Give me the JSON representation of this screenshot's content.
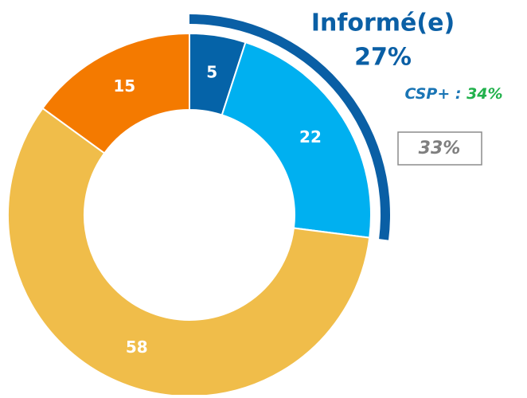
{
  "chart_data": {
    "type": "donut",
    "categories": [
      null,
      null,
      null,
      null
    ],
    "values": [
      5,
      22,
      58,
      15
    ],
    "colors": [
      "#0563a8",
      "#00b0f0",
      "#f0bd4a",
      "#f47a00"
    ],
    "highlight": {
      "label": "Informé(e)",
      "value": 27,
      "value_label": "27%",
      "color": "#0a5fa5"
    },
    "subgroup": {
      "label": "CSP+ :",
      "value": 34,
      "value_label": "34%",
      "color": "#1a75b5",
      "value_color": "#22b14c"
    },
    "boxed": {
      "value": 33,
      "value_label": "33%",
      "color": "#7f7f7f"
    }
  }
}
